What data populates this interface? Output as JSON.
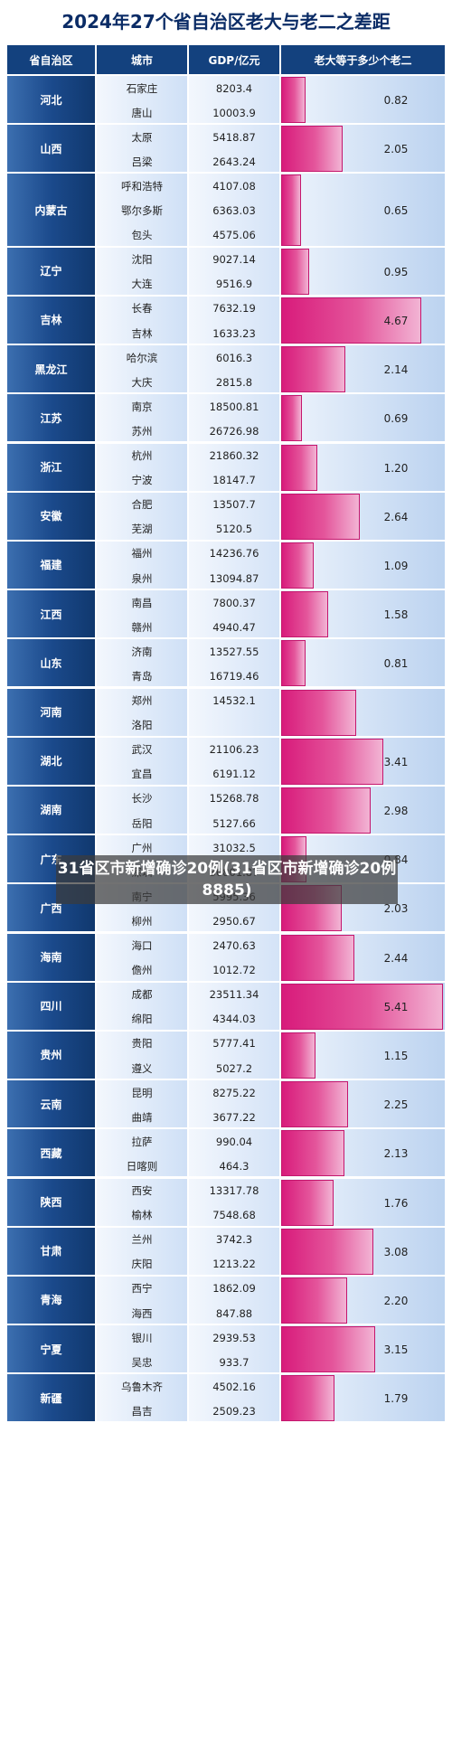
{
  "chart_data": {
    "type": "table",
    "title": "2024年27个省自治区老大与老二之差距",
    "columns": [
      "省自治区",
      "城市",
      "GDP/亿元",
      "老大等于多少个老二"
    ],
    "rows": [
      {
        "province": "河北",
        "cities": [
          "石家庄",
          "唐山"
        ],
        "gdp": [
          "8203.4",
          "10003.9"
        ],
        "ratio": 0.82
      },
      {
        "province": "山西",
        "cities": [
          "太原",
          "吕梁"
        ],
        "gdp": [
          "5418.87",
          "2643.24"
        ],
        "ratio": 2.05
      },
      {
        "province": "内蒙古",
        "cities": [
          "呼和浩特",
          "鄂尔多斯",
          "包头"
        ],
        "gdp": [
          "4107.08",
          "6363.03",
          "4575.06"
        ],
        "ratio": 0.65
      },
      {
        "province": "辽宁",
        "cities": [
          "沈阳",
          "大连"
        ],
        "gdp": [
          "9027.14",
          "9516.9"
        ],
        "ratio": 0.95
      },
      {
        "province": "吉林",
        "cities": [
          "长春",
          "吉林"
        ],
        "gdp": [
          "7632.19",
          "1633.23"
        ],
        "ratio": 4.67
      },
      {
        "province": "黑龙江",
        "cities": [
          "哈尔滨",
          "大庆"
        ],
        "gdp": [
          "6016.3",
          "2815.8"
        ],
        "ratio": 2.14
      },
      {
        "province": "江苏",
        "cities": [
          "南京",
          "苏州"
        ],
        "gdp": [
          "18500.81",
          "26726.98"
        ],
        "ratio": 0.69
      },
      {
        "province": "浙江",
        "cities": [
          "杭州",
          "宁波"
        ],
        "gdp": [
          "21860.32",
          "18147.7"
        ],
        "ratio": 1.2
      },
      {
        "province": "安徽",
        "cities": [
          "合肥",
          "芜湖"
        ],
        "gdp": [
          "13507.7",
          "5120.5"
        ],
        "ratio": 2.64
      },
      {
        "province": "福建",
        "cities": [
          "福州",
          "泉州"
        ],
        "gdp": [
          "14236.76",
          "13094.87"
        ],
        "ratio": 1.09
      },
      {
        "province": "江西",
        "cities": [
          "南昌",
          "赣州"
        ],
        "gdp": [
          "7800.37",
          "4940.47"
        ],
        "ratio": 1.58
      },
      {
        "province": "山东",
        "cities": [
          "济南",
          "青岛"
        ],
        "gdp": [
          "13527.55",
          "16719.46"
        ],
        "ratio": 0.81
      },
      {
        "province": "河南",
        "cities": [
          "郑州",
          "洛阳"
        ],
        "gdp": [
          "14532.1",
          ""
        ],
        "ratio": 2.5
      },
      {
        "province": "湖北",
        "cities": [
          "武汉",
          "宜昌"
        ],
        "gdp": [
          "21106.23",
          "6191.12"
        ],
        "ratio": 3.41
      },
      {
        "province": "湖南",
        "cities": [
          "长沙",
          "岳阳"
        ],
        "gdp": [
          "15268.78",
          "5127.66"
        ],
        "ratio": 2.98
      },
      {
        "province": "广东",
        "cities": [
          "广州",
          "深圳"
        ],
        "gdp": [
          "31032.5",
          "36801.87"
        ],
        "ratio": 0.84
      },
      {
        "province": "广西",
        "cities": [
          "南宁",
          "柳州"
        ],
        "gdp": [
          "5995.36",
          "2950.67"
        ],
        "ratio": 2.03
      },
      {
        "province": "海南",
        "cities": [
          "海口",
          "儋州"
        ],
        "gdp": [
          "2470.63",
          "1012.72"
        ],
        "ratio": 2.44
      },
      {
        "province": "四川",
        "cities": [
          "成都",
          "绵阳"
        ],
        "gdp": [
          "23511.34",
          "4344.03"
        ],
        "ratio": 5.41
      },
      {
        "province": "贵州",
        "cities": [
          "贵阳",
          "遵义"
        ],
        "gdp": [
          "5777.41",
          "5027.2"
        ],
        "ratio": 1.15
      },
      {
        "province": "云南",
        "cities": [
          "昆明",
          "曲靖"
        ],
        "gdp": [
          "8275.22",
          "3677.22"
        ],
        "ratio": 2.25
      },
      {
        "province": "西藏",
        "cities": [
          "拉萨",
          "日喀则"
        ],
        "gdp": [
          "990.04",
          "464.3"
        ],
        "ratio": 2.13
      },
      {
        "province": "陕西",
        "cities": [
          "西安",
          "榆林"
        ],
        "gdp": [
          "13317.78",
          "7548.68"
        ],
        "ratio": 1.76
      },
      {
        "province": "甘肃",
        "cities": [
          "兰州",
          "庆阳"
        ],
        "gdp": [
          "3742.3",
          "1213.22"
        ],
        "ratio": 3.08
      },
      {
        "province": "青海",
        "cities": [
          "西宁",
          "海西"
        ],
        "gdp": [
          "1862.09",
          "847.88"
        ],
        "ratio": 2.2
      },
      {
        "province": "宁夏",
        "cities": [
          "银川",
          "吴忠"
        ],
        "gdp": [
          "2939.53",
          "933.7"
        ],
        "ratio": 3.15
      },
      {
        "province": "新疆",
        "cities": [
          "乌鲁木齐",
          "昌吉"
        ],
        "gdp": [
          "4502.16",
          "2509.23"
        ],
        "ratio": 1.79
      }
    ],
    "ratio_labels_hidden": [
      "2.50"
    ],
    "bar_max": 5.41,
    "colors": {
      "header": "#13417e",
      "province": "#1b4a8c",
      "bar": "#d81b7b",
      "title": "#0b2c66"
    }
  },
  "watermark": {
    "text": "31省区市新增确诊20例(31省区市新增确诊20例8885)"
  }
}
